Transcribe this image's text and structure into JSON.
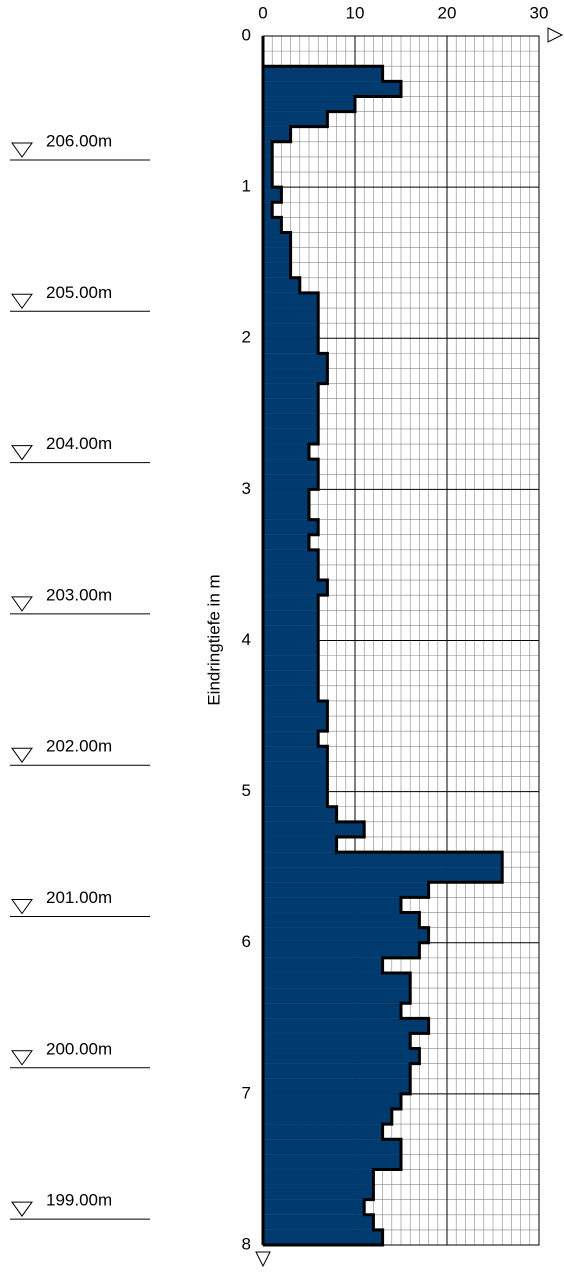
{
  "chart_data": {
    "type": "histogram",
    "orientation": "horizontal",
    "axis_label": "Eindringtiefe in m",
    "levels": [
      "206.00m",
      "205.00m",
      "204.00m",
      "203.00m",
      "202.00m",
      "201.00m",
      "200.00m",
      "199.00m"
    ],
    "bins": [
      0,
      0.1,
      0.2,
      0.3,
      0.4,
      0.5,
      0.6,
      0.7,
      0.8,
      0.9,
      1,
      1.1,
      1.2,
      1.3,
      1.4,
      1.5,
      1.6,
      1.7,
      1.8,
      1.9,
      2,
      2.1,
      2.2,
      2.3,
      2.4,
      2.5,
      2.6,
      2.7,
      2.8,
      2.9,
      3,
      3.1,
      3.2,
      3.3,
      3.4,
      3.5,
      3.6,
      3.7,
      3.8,
      3.9,
      4,
      4.1,
      4.2,
      4.3,
      4.4,
      4.5,
      4.6,
      4.7,
      4.8,
      4.9,
      5,
      5.1,
      5.2,
      5.3,
      5.4,
      5.5,
      5.6,
      5.7,
      5.8,
      5.9,
      6,
      6.1,
      6.2,
      6.3,
      6.4,
      6.5,
      6.6,
      6.7,
      6.8,
      6.9,
      7,
      7.1,
      7.2,
      7.3,
      7.4,
      7.5,
      7.6,
      7.7,
      7.8,
      7.9,
      8
    ],
    "values": [
      0,
      0,
      13,
      15,
      10,
      7,
      3,
      1,
      1,
      1,
      2,
      1,
      2,
      3,
      3,
      3,
      4,
      6,
      6,
      6,
      6,
      7,
      7,
      6,
      6,
      6,
      6,
      5,
      6,
      6,
      5,
      5,
      6,
      5,
      6,
      6,
      7,
      6,
      6,
      6,
      6,
      6,
      6,
      6,
      7,
      7,
      6,
      7,
      7,
      7,
      7,
      8,
      11,
      8,
      26,
      26,
      18,
      15,
      17,
      18,
      17,
      13,
      16,
      16,
      15,
      18,
      16,
      17,
      16,
      16,
      15,
      14,
      13,
      15,
      15,
      12,
      12,
      11,
      12,
      13
    ],
    "color": "#003a6e",
    "xlim": [
      0,
      30
    ],
    "xticks": [
      0,
      10,
      20,
      30
    ],
    "ylim": [
      0,
      8
    ],
    "yticks": [
      0,
      1,
      2,
      3,
      4,
      5,
      6,
      7,
      8
    ],
    "grid": true
  }
}
